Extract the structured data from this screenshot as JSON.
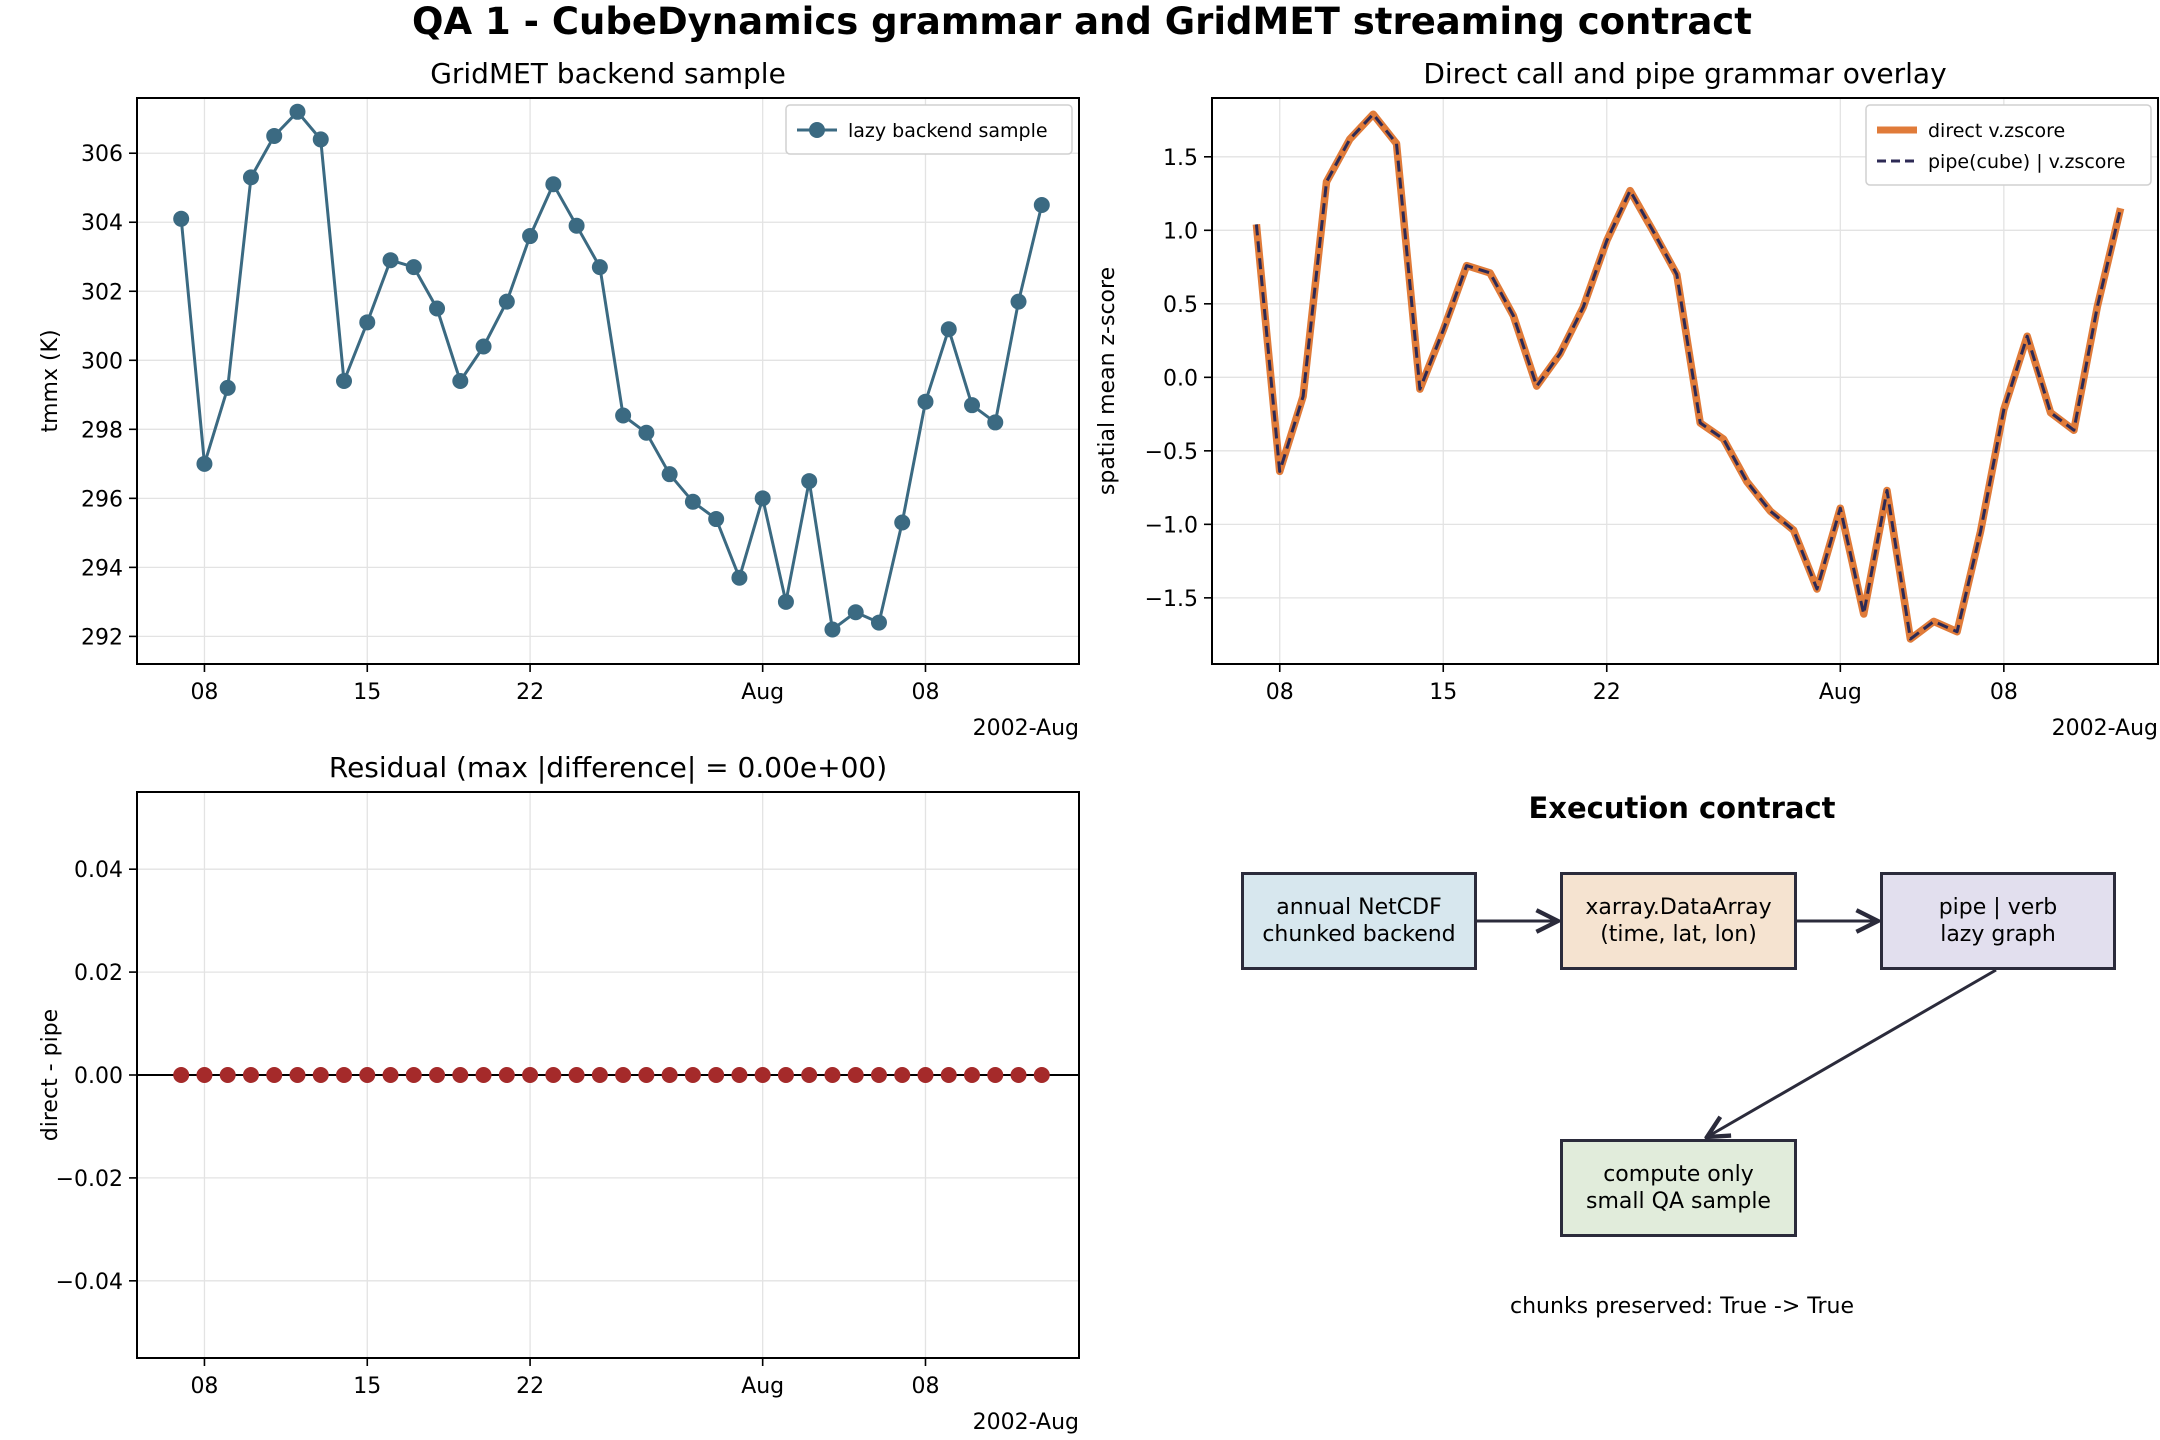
{
  "suptitle": "QA 1 - CubeDynamics grammar and GridMET streaming contract",
  "chart_data": [
    {
      "type": "line",
      "title": "GridMET backend sample",
      "xlabel": "",
      "ylabel": "tmmx (K)",
      "date_offset_label": "2002-Aug",
      "x_start_date": "2002-07-07",
      "x_tick_labels": [
        "08",
        "15",
        "22",
        "Aug",
        "08"
      ],
      "ylim": [
        291.2,
        307.6
      ],
      "y_ticks": [
        292,
        294,
        296,
        298,
        300,
        302,
        304,
        306
      ],
      "grid": true,
      "legend": "top-right",
      "series": [
        {
          "name": "lazy backend sample",
          "color": "#3b6a82",
          "marker": "circle",
          "values": [
            304.1,
            297.0,
            299.2,
            305.3,
            306.5,
            307.2,
            306.4,
            299.4,
            301.1,
            302.9,
            302.7,
            301.5,
            299.4,
            300.4,
            301.7,
            303.6,
            305.1,
            303.9,
            302.7,
            298.4,
            297.9,
            296.7,
            295.9,
            295.4,
            293.7,
            296.0,
            293.0,
            296.5,
            292.2,
            292.7,
            292.4,
            295.3,
            298.8,
            300.9,
            298.7,
            298.2,
            301.7,
            304.5
          ]
        }
      ]
    },
    {
      "type": "line",
      "title": "Direct call and pipe grammar overlay",
      "xlabel": "",
      "ylabel": "spatial mean z-score",
      "date_offset_label": "2002-Aug",
      "x_start_date": "2002-07-07",
      "x_tick_labels": [
        "08",
        "15",
        "22",
        "Aug",
        "08"
      ],
      "ylim": [
        -1.95,
        1.9
      ],
      "y_ticks": [
        -1.5,
        -1.0,
        -0.5,
        0.0,
        0.5,
        1.0,
        1.5
      ],
      "grid": true,
      "legend": "top-right",
      "series": [
        {
          "name": "direct v.zscore",
          "color": "#e07b39",
          "style": "solid",
          "values": [
            1.04,
            -0.64,
            -0.13,
            1.33,
            1.62,
            1.79,
            1.59,
            -0.08,
            0.32,
            0.76,
            0.71,
            0.42,
            -0.06,
            0.16,
            0.48,
            0.93,
            1.27,
            0.99,
            0.7,
            -0.31,
            -0.42,
            -0.71,
            -0.91,
            -1.04,
            -1.44,
            -0.89,
            -1.61,
            -0.77,
            -1.78,
            -1.66,
            -1.73,
            -1.05,
            -0.22,
            0.28,
            -0.24,
            -0.36,
            0.48,
            1.15
          ]
        },
        {
          "name": "pipe(cube) | v.zscore",
          "color": "#2d2a55",
          "style": "dashed",
          "values": [
            1.04,
            -0.64,
            -0.13,
            1.33,
            1.62,
            1.79,
            1.59,
            -0.08,
            0.32,
            0.76,
            0.71,
            0.42,
            -0.06,
            0.16,
            0.48,
            0.93,
            1.27,
            0.99,
            0.7,
            -0.31,
            -0.42,
            -0.71,
            -0.91,
            -1.04,
            -1.44,
            -0.89,
            -1.61,
            -0.77,
            -1.78,
            -1.66,
            -1.73,
            -1.05,
            -0.22,
            0.28,
            -0.24,
            -0.36,
            0.48,
            1.15
          ]
        }
      ]
    },
    {
      "type": "scatter",
      "title": "Residual (max |difference| = 0.00e+00)",
      "xlabel": "",
      "ylabel": "direct - pipe",
      "date_offset_label": "2002-Aug",
      "x_start_date": "2002-07-07",
      "x_tick_labels": [
        "08",
        "15",
        "22",
        "Aug",
        "08"
      ],
      "ylim": [
        -0.055,
        0.055
      ],
      "y_ticks": [
        -0.04,
        -0.02,
        0.0,
        0.02,
        0.04
      ],
      "y_tick_labels": [
        "−0.04",
        "−0.02",
        "0.00",
        "0.02",
        "0.04"
      ],
      "grid": true,
      "zero_line": true,
      "series": [
        {
          "color": "#a52a2a",
          "marker": "circle",
          "values": [
            0,
            0,
            0,
            0,
            0,
            0,
            0,
            0,
            0,
            0,
            0,
            0,
            0,
            0,
            0,
            0,
            0,
            0,
            0,
            0,
            0,
            0,
            0,
            0,
            0,
            0,
            0,
            0,
            0,
            0,
            0,
            0,
            0,
            0,
            0,
            0,
            0,
            0
          ]
        }
      ]
    }
  ],
  "diagram": {
    "title": "Execution contract",
    "boxes": [
      {
        "id": "netcdf",
        "label": "annual NetCDF\nchunked backend",
        "color": "#d7e7ee"
      },
      {
        "id": "dataarray",
        "label": "xarray.DataArray\n(time, lat, lon)",
        "color": "#f5e3d0"
      },
      {
        "id": "pipe",
        "label": "pipe | verb\nlazy graph",
        "color": "#e2dfee"
      },
      {
        "id": "compute",
        "label": "compute only\nsmall QA sample",
        "color": "#e1ecdb"
      }
    ],
    "footer": "chunks preserved: True -> True"
  }
}
